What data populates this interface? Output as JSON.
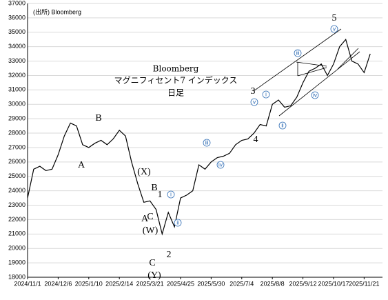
{
  "chart_data": {
    "type": "line",
    "source": "(出所) Bloomberg",
    "title": [
      "Bloomberg",
      "マグニフィセント7 インデックス",
      "日足"
    ],
    "annotations": [
      "A",
      "B",
      "(X)",
      "C",
      "(W)",
      "A",
      "B",
      "1",
      "C",
      "(Y)",
      "2",
      "3",
      "4",
      "5"
    ],
    "circled_labels": [
      "ⅰ",
      "ⅱ",
      "ⅲ",
      "ⅳ",
      "ⅴ",
      "ⅰ",
      "ⅱ",
      "ⅲ",
      "ⅳ",
      "ⅴ"
    ],
    "x": [
      "2024/11/1",
      "2024/11/8",
      "2024/11/15",
      "2024/11/22",
      "2024/11/29",
      "2024/12/6",
      "2024/12/13",
      "2024/12/20",
      "2024/12/27",
      "2025/1/3",
      "2025/1/10",
      "2025/1/17",
      "2025/1/24",
      "2025/1/31",
      "2025/2/7",
      "2025/2/14",
      "2025/2/21",
      "2025/2/28",
      "2025/3/7",
      "2025/3/14",
      "2025/3/21",
      "2025/3/28",
      "2025/4/4",
      "2025/4/11",
      "2025/4/18",
      "2025/4/25",
      "2025/5/2",
      "2025/5/9",
      "2025/5/16",
      "2025/5/23",
      "2025/5/30",
      "2025/6/6",
      "2025/6/13",
      "2025/6/20",
      "2025/6/27",
      "2025/7/4",
      "2025/7/11",
      "2025/7/18",
      "2025/7/25",
      "2025/8/1",
      "2025/8/8",
      "2025/8/15",
      "2025/8/22",
      "2025/8/29",
      "2025/9/5",
      "2025/9/12",
      "2025/9/19",
      "2025/9/26",
      "2025/10/3",
      "2025/10/10",
      "2025/10/17",
      "2025/10/24",
      "2025/10/31",
      "2025/11/7",
      "2025/11/14",
      "2025/11/21",
      "2025/11/28"
    ],
    "series": [
      {
        "color": "#000000",
        "values": [
          23500,
          25500,
          25700,
          25400,
          25500,
          26500,
          27800,
          28700,
          28500,
          27200,
          27000,
          27300,
          27500,
          27200,
          27600,
          28200,
          27800,
          26000,
          24500,
          23200,
          23300,
          22700,
          21000,
          22500,
          21500,
          23500,
          23700,
          24000,
          25800,
          25500,
          26000,
          26300,
          26400,
          26600,
          27200,
          27500,
          27600,
          28000,
          28600,
          28500,
          30000,
          30300,
          29800,
          29900,
          30500,
          31500,
          32300,
          32500,
          32800,
          32000,
          32800,
          34000,
          34500,
          33000,
          32800,
          32200,
          33500
        ]
      }
    ],
    "xlim": [
      "2024/11/1",
      "2025/12/12"
    ],
    "xticks": [
      "2024/11/1",
      "2024/12/6",
      "2025/1/10",
      "2025/2/14",
      "2025/3/21",
      "2025/4/25",
      "2025/5/30",
      "2025/7/4",
      "2025/8/8",
      "2025/9/12",
      "2025/10/17",
      "2025/11/21"
    ],
    "ylim": [
      18000,
      37000
    ],
    "yticks": [
      18000,
      19000,
      20000,
      21000,
      22000,
      23000,
      24000,
      25000,
      26000,
      27000,
      28000,
      29000,
      30000,
      31000,
      32000,
      33000,
      34000,
      35000,
      36000,
      37000
    ],
    "grid": true
  }
}
